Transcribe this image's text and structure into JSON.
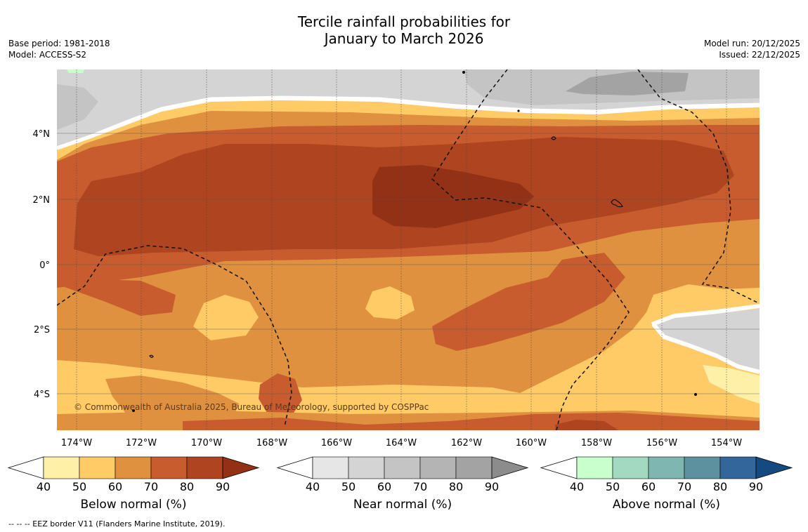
{
  "title": {
    "line1": "Tercile rainfall probabilities for",
    "line2": "January to March 2026"
  },
  "meta_left": {
    "base_period": "Base period: 1981-2018",
    "model": "Model: ACCESS-S2"
  },
  "meta_right": {
    "model_run": "Model run: 20/12/2025",
    "issued": "Issued: 22/12/2025"
  },
  "map": {
    "lon_labels": [
      "174°W",
      "172°W",
      "170°W",
      "168°W",
      "166°W",
      "164°W",
      "162°W",
      "160°W",
      "158°W",
      "156°W",
      "154°W"
    ],
    "lat_labels": [
      "4°N",
      "2°N",
      "0°",
      "2°S",
      "4°S"
    ],
    "lon_range": [
      -174.6,
      -153.0
    ],
    "lat_range": [
      -5.0,
      6.0
    ],
    "copyright": "© Commonwealth of Australia 2025, Bureau of Meteorology, supported by COSPPac"
  },
  "colorbars": [
    {
      "key": "below",
      "label": "Below normal (%)",
      "ticks": [
        "40",
        "50",
        "60",
        "70",
        "80",
        "90"
      ],
      "colors": [
        "#fff0a8",
        "#fecb66",
        "#e0913f",
        "#c95c2e",
        "#ae4420",
        "#933117"
      ]
    },
    {
      "key": "near",
      "label": "Near normal (%)",
      "ticks": [
        "40",
        "50",
        "60",
        "70",
        "80",
        "90"
      ],
      "colors": [
        "#e6e6e6",
        "#d4d4d4",
        "#c4c4c4",
        "#b4b4b4",
        "#a3a3a3",
        "#8c8c8c"
      ]
    },
    {
      "key": "above",
      "label": "Above normal (%)",
      "ticks": [
        "40",
        "50",
        "60",
        "70",
        "80",
        "90"
      ],
      "colors": [
        "#c8ffcc",
        "#a2d9c0",
        "#80b6b1",
        "#5e919f",
        "#33669a",
        "#154a80"
      ]
    }
  ],
  "footnote": "--  --  -- EEZ border V11 (Flanders Marine Institute, 2019)."
}
